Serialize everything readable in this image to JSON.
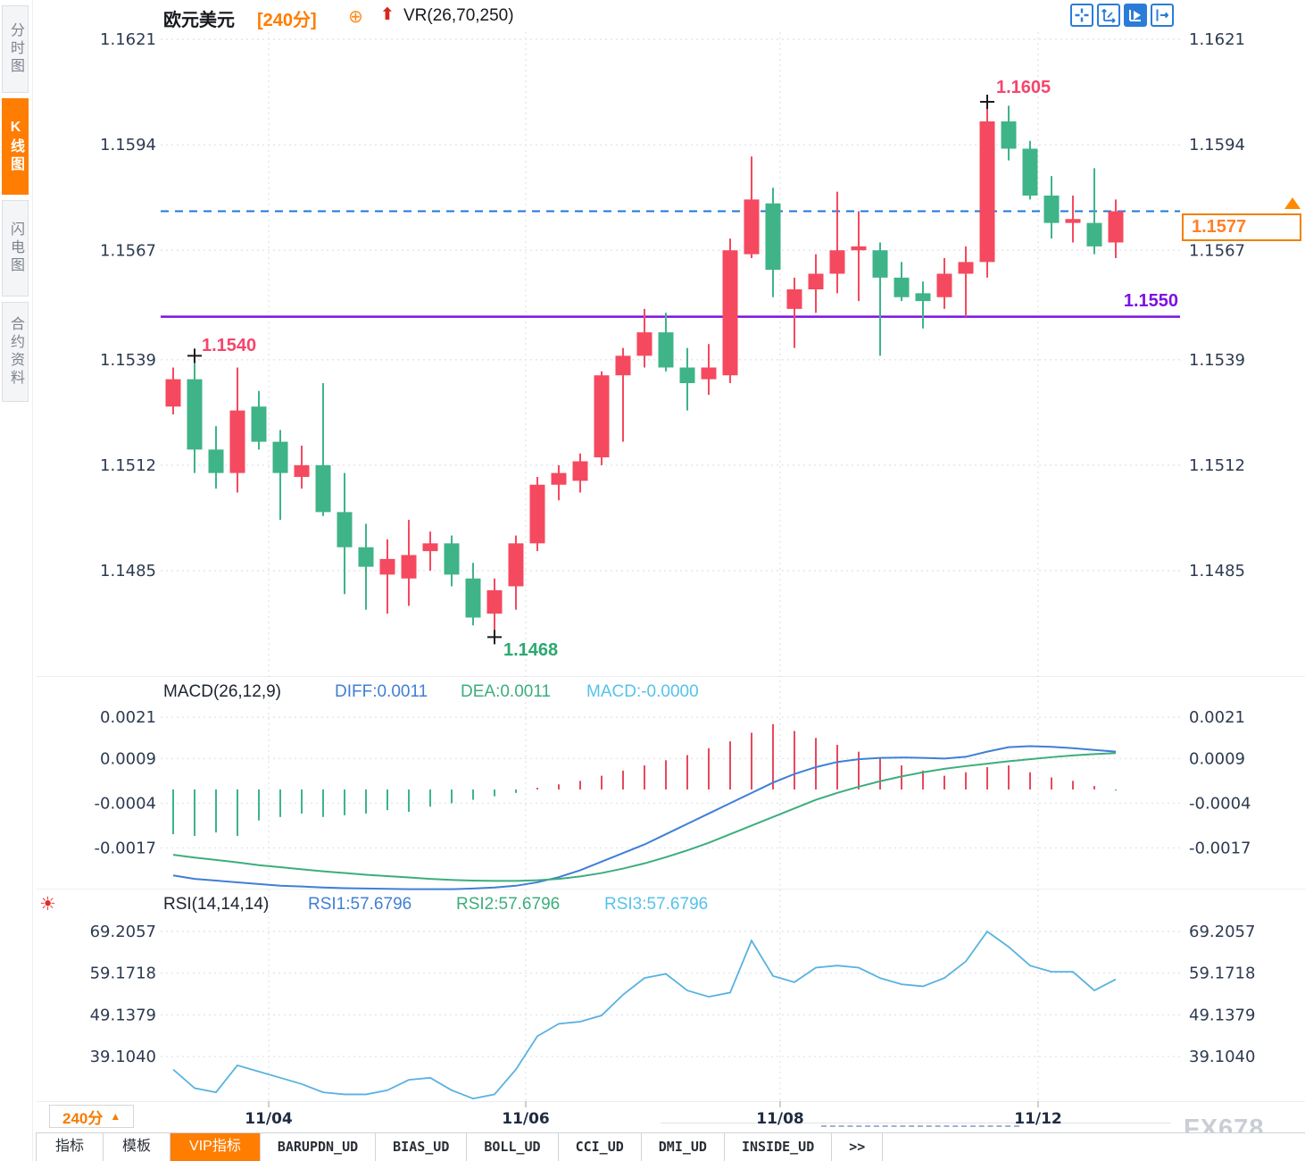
{
  "header": {
    "symbol": "欧元美元",
    "period": "[240分]",
    "add_icon": "⊕",
    "up_arrow_icon": "⬆",
    "overlay_indicator": "VR(26,70,250)"
  },
  "sidebar": {
    "items": [
      {
        "label": "分时图",
        "active": false
      },
      {
        "label": "K线图",
        "active": true
      },
      {
        "label": "闪电图",
        "active": false
      },
      {
        "label": "合约资料",
        "active": false
      }
    ]
  },
  "toolbar": {
    "buttons": [
      {
        "name": "crosshair"
      },
      {
        "name": "scale-axes"
      },
      {
        "name": "auto-fit",
        "active": true
      },
      {
        "name": "pan-right"
      }
    ]
  },
  "main_chart": {
    "price_labels": [
      "1.1621",
      "1.1594",
      "1.1567",
      "1.1539",
      "1.1512",
      "1.1485"
    ],
    "annotations": {
      "swing_high": "1.1540",
      "low": "1.1468",
      "high": "1.1605",
      "support": "1.1550",
      "last_price": "1.1577"
    }
  },
  "macd_pane": {
    "title": "MACD(26,12,9)",
    "diff": "DIFF:0.0011",
    "dea": "DEA:0.0011",
    "macd": "MACD:-0.0000",
    "scale_labels": [
      "0.0021",
      "0.0009",
      "-0.0004",
      "-0.0017"
    ]
  },
  "rsi_pane": {
    "title": "RSI(14,14,14)",
    "rsi1": "RSI1:57.6796",
    "rsi2": "RSI2:57.6796",
    "rsi3": "RSI3:57.6796",
    "scale_labels": [
      "69.2057",
      "59.1718",
      "49.1379",
      "39.1040"
    ]
  },
  "x_axis": {
    "date_labels": [
      "11/04",
      "11/06",
      "11/08",
      "11/12"
    ]
  },
  "footer": {
    "period_button": {
      "label": "240分",
      "arrow": "▲"
    },
    "tabs": [
      {
        "label": "指标",
        "active": false
      },
      {
        "label": "模板",
        "active": false
      },
      {
        "label": "VIP指标",
        "active": true
      },
      {
        "label": "BARUPDN_UD",
        "active": false
      },
      {
        "label": "BIAS_UD",
        "active": false
      },
      {
        "label": "BOLL_UD",
        "active": false
      },
      {
        "label": "CCI_UD",
        "active": false
      },
      {
        "label": "DMI_UD",
        "active": false
      },
      {
        "label": "INSIDE_UD",
        "active": false
      },
      {
        "label": ">>",
        "active": false
      }
    ],
    "watermark": "FX678"
  },
  "colors": {
    "up": "#f5495f",
    "down": "#3eb488",
    "accent_orange": "#ff7d00",
    "support_purple": "#7c10e4",
    "dashed_blue": "#2176d9",
    "diff_blue": "#3f7fd6",
    "dea_green": "#3cae7d",
    "macd_value_cyan": "#56c2ea",
    "rsi_line": "#58b2e0",
    "axis_text": "#2d3a50",
    "grid": "#e5e6e9",
    "marker": "#1b1b1b"
  },
  "chart_data": {
    "type": "candlestick",
    "symbol": "欧元美元 EUR/USD",
    "interval": "240分",
    "candles": [
      [
        1.1527,
        1.1534,
        1.1537,
        1.1525
      ],
      [
        1.1534,
        1.1516,
        1.154,
        1.151
      ],
      [
        1.1516,
        1.151,
        1.1522,
        1.1506
      ],
      [
        1.151,
        1.1526,
        1.1537,
        1.1505
      ],
      [
        1.1527,
        1.1518,
        1.1531,
        1.1516
      ],
      [
        1.1518,
        1.151,
        1.1521,
        1.1498
      ],
      [
        1.1509,
        1.1512,
        1.1517,
        1.1506
      ],
      [
        1.1512,
        1.15,
        1.1533,
        1.1499
      ],
      [
        1.15,
        1.1491,
        1.151,
        1.1479
      ],
      [
        1.1491,
        1.1486,
        1.1497,
        1.1475
      ],
      [
        1.1484,
        1.1488,
        1.1493,
        1.1474
      ],
      [
        1.1483,
        1.1489,
        1.1498,
        1.1476
      ],
      [
        1.149,
        1.1492,
        1.1495,
        1.1485
      ],
      [
        1.1492,
        1.1484,
        1.1494,
        1.1481
      ],
      [
        1.1483,
        1.1473,
        1.1487,
        1.1471
      ],
      [
        1.1474,
        1.148,
        1.1483,
        1.1468
      ],
      [
        1.1481,
        1.1492,
        1.1494,
        1.1475
      ],
      [
        1.1492,
        1.1507,
        1.1509,
        1.149
      ],
      [
        1.1507,
        1.151,
        1.1512,
        1.1503
      ],
      [
        1.1508,
        1.1513,
        1.1515,
        1.1505
      ],
      [
        1.1514,
        1.1535,
        1.1536,
        1.1512
      ],
      [
        1.1535,
        1.154,
        1.1542,
        1.1518
      ],
      [
        1.154,
        1.1546,
        1.1552,
        1.1537
      ],
      [
        1.1546,
        1.1537,
        1.1551,
        1.1536
      ],
      [
        1.1537,
        1.1533,
        1.1542,
        1.1526
      ],
      [
        1.1534,
        1.1537,
        1.1543,
        1.153
      ],
      [
        1.1535,
        1.1567,
        1.157,
        1.1533
      ],
      [
        1.1566,
        1.158,
        1.1591,
        1.1565
      ],
      [
        1.1579,
        1.1562,
        1.1583,
        1.1555
      ],
      [
        1.1552,
        1.1557,
        1.156,
        1.1542
      ],
      [
        1.1557,
        1.1561,
        1.1566,
        1.1551
      ],
      [
        1.1561,
        1.1567,
        1.1582,
        1.1556
      ],
      [
        1.1567,
        1.1568,
        1.1577,
        1.1554
      ],
      [
        1.1567,
        1.156,
        1.1569,
        1.154
      ],
      [
        1.156,
        1.1555,
        1.1564,
        1.1554
      ],
      [
        1.1556,
        1.1554,
        1.1559,
        1.1547
      ],
      [
        1.1555,
        1.1561,
        1.1565,
        1.1552
      ],
      [
        1.1561,
        1.1564,
        1.1568,
        1.155
      ],
      [
        1.1564,
        1.16,
        1.1605,
        1.156
      ],
      [
        1.16,
        1.1593,
        1.1604,
        1.159
      ],
      [
        1.1593,
        1.1581,
        1.1595,
        1.158
      ],
      [
        1.1581,
        1.1574,
        1.1586,
        1.157
      ],
      [
        1.1574,
        1.1575,
        1.1581,
        1.1569
      ],
      [
        1.1574,
        1.1568,
        1.1588,
        1.1566
      ],
      [
        1.1569,
        1.1577,
        1.158,
        1.1565
      ]
    ],
    "markers": [
      {
        "candle": 1,
        "point": "high",
        "label": "1.1540"
      },
      {
        "candle": 15,
        "point": "low",
        "label": "1.1468"
      },
      {
        "candle": 38,
        "point": "high",
        "label": "1.1605"
      }
    ],
    "levels": {
      "last_price": 1.1577,
      "support": 1.155
    },
    "macd": {
      "params": [
        26,
        12,
        9
      ],
      "unit": 0.0001,
      "hist": [
        -13,
        -13.5,
        -12.5,
        -13.5,
        -9,
        -8,
        -7,
        -8,
        -7.5,
        -7,
        -6,
        -6.5,
        -5,
        -4,
        -3,
        -2,
        -1,
        0.5,
        1.5,
        2.5,
        4,
        5.5,
        7,
        8.5,
        10,
        12,
        14,
        16.5,
        19,
        17,
        15,
        13,
        11,
        9,
        7,
        5.5,
        4,
        5,
        6.5,
        7,
        5,
        3.5,
        2.5,
        1,
        -0.3
      ],
      "diff": [
        -25,
        -26,
        -26.5,
        -27,
        -27.5,
        -28,
        -28.2,
        -28.5,
        -28.7,
        -28.8,
        -28.9,
        -29,
        -29,
        -29,
        -28.8,
        -28.5,
        -28,
        -27,
        -25.5,
        -23.5,
        -21,
        -18.5,
        -16,
        -13,
        -10,
        -7,
        -4,
        -1,
        2,
        4.5,
        6.5,
        8,
        8.8,
        9.2,
        9.3,
        9.2,
        9,
        9.5,
        11,
        12.3,
        12.6,
        12.4,
        12,
        11.5,
        11
      ],
      "dea": [
        -19,
        -19.8,
        -20.5,
        -21.2,
        -22,
        -22.6,
        -23.2,
        -23.8,
        -24.3,
        -24.8,
        -25.2,
        -25.6,
        -26,
        -26.3,
        -26.5,
        -26.6,
        -26.6,
        -26.4,
        -26,
        -25.3,
        -24.3,
        -23,
        -21.5,
        -19.7,
        -17.7,
        -15.5,
        -13,
        -10.5,
        -8,
        -5.5,
        -3,
        -1,
        0.8,
        2.4,
        3.8,
        5,
        6,
        6.8,
        7.5,
        8.2,
        8.8,
        9.4,
        9.9,
        10.3,
        10.6
      ]
    },
    "rsi": {
      "params": [
        14,
        14,
        14
      ],
      "values": [
        36,
        31.5,
        30.5,
        37,
        35.5,
        34,
        32.5,
        30.5,
        30,
        30,
        31,
        33.5,
        34,
        31,
        29,
        30,
        36,
        44,
        47,
        47.5,
        49,
        54,
        58,
        59,
        55,
        53.5,
        54.5,
        67,
        58.5,
        57,
        60.5,
        61,
        60.5,
        58,
        56.5,
        56,
        58,
        62,
        69.2,
        65.5,
        61,
        59.5,
        59.5,
        55,
        57.7
      ]
    },
    "y_axis_main": [
      1.1621,
      1.1594,
      1.1567,
      1.1539,
      1.1512,
      1.1485
    ],
    "y_axis_macd": [
      0.0021,
      0.0009,
      -0.0004,
      -0.0017
    ],
    "y_axis_rsi": [
      69.2057,
      59.1718,
      49.1379,
      39.104
    ],
    "x_dates": [
      "11/04",
      "11/06",
      "11/08",
      "11/12"
    ]
  }
}
